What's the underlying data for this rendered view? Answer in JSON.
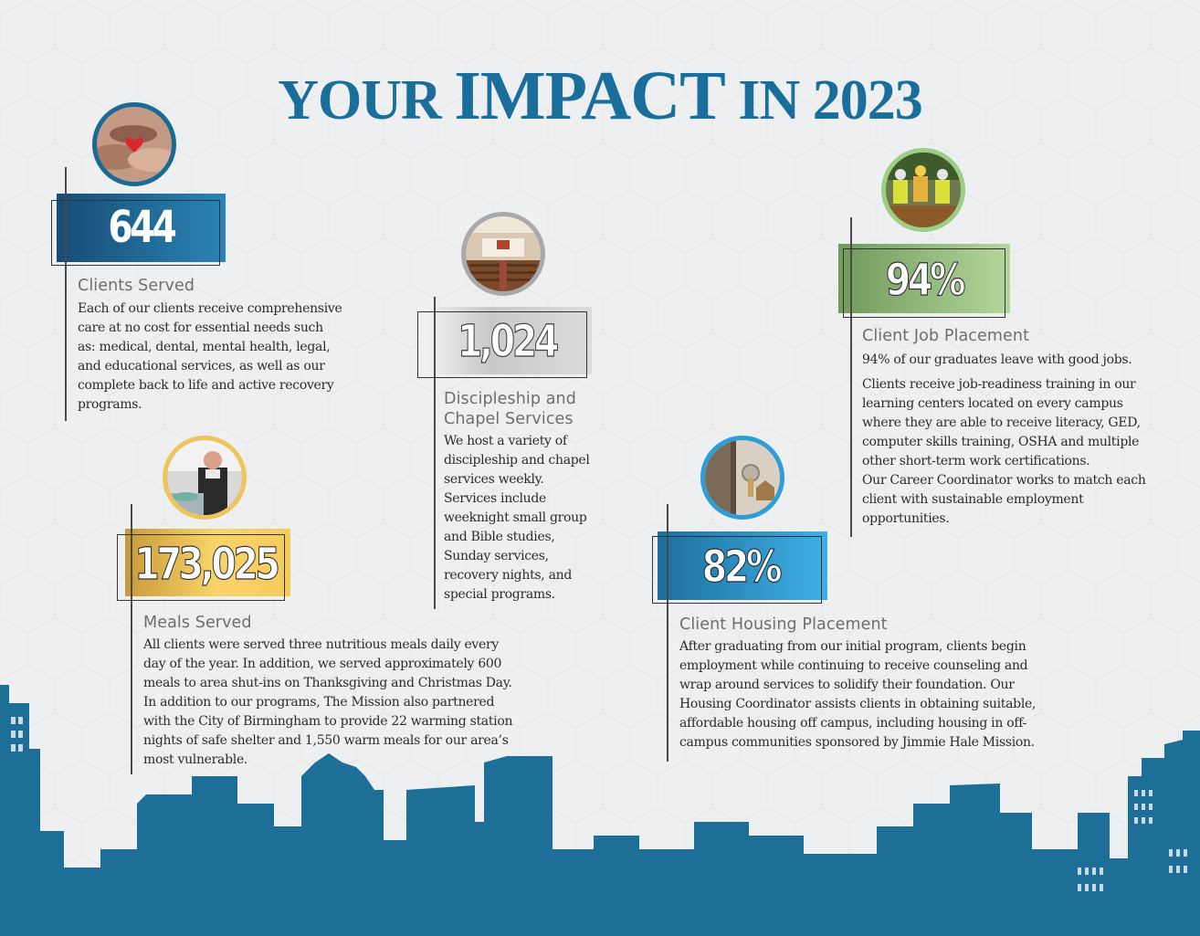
{
  "title": {
    "part1": "YOUR ",
    "part2": "IMPACT",
    "part3": " IN 2023"
  },
  "colors": {
    "title_blue": "#1a6e9b",
    "skyline_blue": "#1d6f97",
    "clients_blue": "#1a6a96",
    "chapel_gray": "#bfbfc2",
    "meals_gold": "#f0c45c",
    "job_green": "#a4c98c",
    "housing_blue": "#2d9fd6"
  },
  "stats": {
    "clients": {
      "number": "644",
      "heading": "Clients Served",
      "body": "Each of our clients receive comprehensive care at no cost for essential needs such as: medical, dental, mental health, legal, and educational services, as well as our complete back to life and active recovery programs."
    },
    "chapel": {
      "number": "1,024",
      "heading": "Discipleship and Chapel Services",
      "body": "We host a variety of discipleship and chapel services weekly. Services include weeknight small group and Bible studies, Sunday services, recovery nights, and special programs."
    },
    "jobs": {
      "number": "94%",
      "heading": "Client Job Placement",
      "body1": "94% of our graduates leave with good jobs.",
      "body2": "Clients receive job-readiness training in our learning centers located on every campus where they are able to receive literacy, GED, computer skills training, OSHA and multiple other short-term work certifications.",
      "body3": "Our Career Coordinator works to match each client with sustainable employment opportunities."
    },
    "meals": {
      "number": "173,025",
      "heading": "Meals Served",
      "body": "All clients were served three nutritious meals daily every day of the year. In addition, we served approximately 600 meals to area shut-ins on Thanksgiving and Christmas Day. In addition to our programs, The Mission also partnered with the City of Birmingham to provide 22 warming station nights of safe shelter and 1,550 warm meals for our area’s most vulnerable."
    },
    "housing": {
      "number": "82%",
      "heading": "Client Housing Placement",
      "body": "After graduating from our initial program, clients begin employment while continuing to receive counseling and wrap around services to solidify their foundation.  Our Housing Coordinator assists clients in obtaining suitable, affordable housing off campus, including housing in off-campus communities sponsored by Jimmie Hale Mission."
    }
  },
  "photos": {
    "clients": "hands-holding-heart-photo",
    "chapel": "chapel-interior-photo",
    "jobs": "workers-safety-vests-photo",
    "meals": "cook-serving-food-photo",
    "housing": "key-in-door-photo"
  }
}
